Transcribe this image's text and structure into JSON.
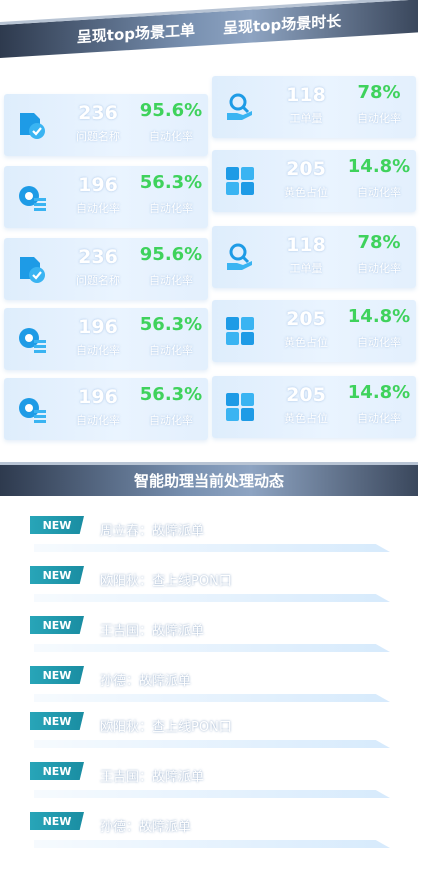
{
  "header": {
    "title_left": "呈现top场景工单",
    "title_right": "呈现top场景时长"
  },
  "cards": [
    {
      "icon": "doc-check-icon",
      "count": "236",
      "count_label": "问题名称",
      "percent": "95.6%",
      "percent_label": "自动化率"
    },
    {
      "icon": "search-hand-icon",
      "count": "118",
      "count_label": "工单量",
      "percent": "78%",
      "percent_label": "自动化率"
    },
    {
      "icon": "gear-list-icon",
      "count": "196",
      "count_label": "自动化率",
      "percent": "56.3%",
      "percent_label": "自动化率"
    },
    {
      "icon": "grid-icon",
      "count": "205",
      "count_label": "黄色占位",
      "percent": "14.8%",
      "percent_label": "自动化率"
    },
    {
      "icon": "doc-check-icon",
      "count": "236",
      "count_label": "问题名称",
      "percent": "95.6%",
      "percent_label": "自动化率"
    },
    {
      "icon": "search-hand-icon",
      "count": "118",
      "count_label": "工单量",
      "percent": "78%",
      "percent_label": "自动化率"
    },
    {
      "icon": "gear-list-icon",
      "count": "196",
      "count_label": "自动化率",
      "percent": "56.3%",
      "percent_label": "自动化率"
    },
    {
      "icon": "grid-icon",
      "count": "205",
      "count_label": "黄色占位",
      "percent": "14.8%",
      "percent_label": "自动化率"
    },
    {
      "icon": "gear-list-icon",
      "count": "196",
      "count_label": "自动化率",
      "percent": "56.3%",
      "percent_label": "自动化率"
    },
    {
      "icon": "grid-icon",
      "count": "205",
      "count_label": "黄色占位",
      "percent": "14.8%",
      "percent_label": "自动化率"
    }
  ],
  "assistant": {
    "title": "智能助理当前处理动态",
    "badge": "NEW",
    "items": [
      "周立春：故障派单",
      "欧阳秋：查上线PON口",
      "王吉国：故障派单",
      "孙德：故障派单",
      "欧阳秋：查上线PON口",
      "王吉国：故障派单",
      "孙德：故障派单"
    ]
  },
  "colors": {
    "percent_green": "#3fd25c",
    "icon_blue": "#1e9be6",
    "badge_teal": "#28a5b8"
  }
}
